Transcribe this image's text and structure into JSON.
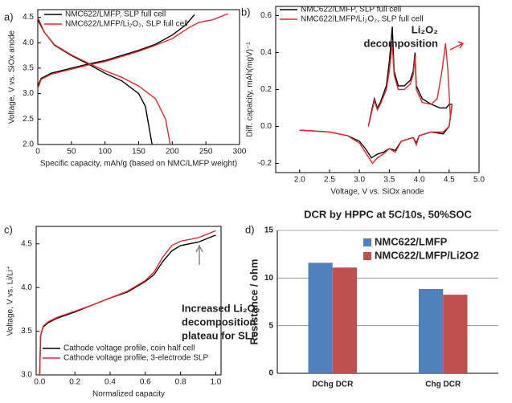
{
  "chart_data": [
    {
      "type": "line",
      "panel": "a)",
      "xlabel": "Specific capacity, mAh/g (based on NMC/LMFP weight)",
      "ylabel": "Voltage, V vs. SiOx anode",
      "xlim": [
        0,
        300
      ],
      "xticks": [
        0,
        50,
        100,
        150,
        200,
        250,
        300
      ],
      "ylim": [
        2.0,
        4.65
      ],
      "yticks": [
        {
          "value": 2,
          "label": "2.0"
        },
        2.5,
        {
          "value": 3,
          "label": "3.0"
        },
        3.5,
        {
          "value": 4,
          "label": "4.0"
        },
        4.5
      ],
      "series": [
        {
          "name": "NMC622/LMFP, SLP full cell",
          "color": "#000000",
          "x": [
            0,
            5,
            20,
            50,
            75,
            100,
            125,
            150,
            175,
            200,
            220,
            233,
            null,
            0,
            10,
            25,
            50,
            75,
            100,
            125,
            150,
            160,
            170
          ],
          "values": [
            3.15,
            3.3,
            3.4,
            3.5,
            3.58,
            3.65,
            3.75,
            3.85,
            3.97,
            4.15,
            4.35,
            4.55,
            null,
            4.45,
            4.2,
            3.95,
            3.75,
            3.58,
            3.4,
            3.25,
            3.0,
            2.75,
            2.0
          ]
        },
        {
          "name": "NMC622/LMFP/Li₂O₂, SLP full cell",
          "color": "#e8262b",
          "x": [
            0,
            5,
            20,
            50,
            75,
            100,
            125,
            150,
            175,
            200,
            225,
            240,
            260,
            283,
            null,
            0,
            10,
            25,
            50,
            75,
            100,
            125,
            150,
            175,
            190,
            197
          ],
          "values": [
            3.1,
            3.28,
            3.38,
            3.48,
            3.56,
            3.63,
            3.73,
            3.83,
            3.95,
            4.08,
            4.3,
            4.4,
            4.45,
            4.57,
            null,
            4.5,
            4.2,
            3.96,
            3.76,
            3.6,
            3.45,
            3.32,
            3.15,
            2.9,
            2.5,
            2.0
          ]
        }
      ]
    },
    {
      "type": "line",
      "panel": "b)",
      "xlabel": "Voltage, V vs. SiOx anode",
      "ylabel": "Diff. capacity, mAh(mgV)⁻¹",
      "annotation": [
        "Li₂O₂",
        "decomposition"
      ],
      "xlim": [
        1.6,
        5.0
      ],
      "xticks": [
        {
          "value": 2,
          "label": "2.0"
        },
        2.5,
        {
          "value": 3,
          "label": "3.0"
        },
        3.5,
        {
          "value": 4,
          "label": "4.0"
        },
        4.5,
        {
          "value": 5,
          "label": "5.0"
        }
      ],
      "ylim": [
        -0.25,
        0.65
      ],
      "yticks": [
        -0.2,
        {
          "value": 0,
          "label": "0.0"
        },
        0.2,
        0.4,
        0.6
      ],
      "series": [
        {
          "name": "NMC622/LMFP, SLP full cell",
          "color": "#000000",
          "x": [
            3.15,
            3.2,
            3.25,
            3.3,
            3.35,
            3.45,
            3.5,
            3.55,
            3.58,
            3.65,
            3.75,
            3.85,
            3.9,
            3.93,
            3.95,
            4.05,
            4.2,
            4.35,
            4.45,
            4.5,
            4.55,
            null,
            4.55,
            4.5,
            4.4,
            4.2,
            4.0,
            3.95,
            3.9,
            3.7,
            3.6,
            3.5,
            3.4,
            3.3,
            3.2,
            3.1,
            3.0,
            2.8,
            2.5,
            2.0
          ],
          "values": [
            0.0,
            0.08,
            0.15,
            0.1,
            0.13,
            0.22,
            0.35,
            0.54,
            0.3,
            0.22,
            0.22,
            0.25,
            0.3,
            0.4,
            0.22,
            0.15,
            0.12,
            0.1,
            0.1,
            0.12,
            0.12,
            null,
            0.12,
            0.0,
            -0.04,
            -0.03,
            -0.05,
            -0.09,
            -0.06,
            -0.08,
            -0.13,
            -0.12,
            -0.14,
            -0.15,
            -0.17,
            -0.12,
            -0.08,
            -0.05,
            -0.03,
            -0.02
          ]
        },
        {
          "name": "NMC622/LMFP/Li₂O₂, SLP full cell",
          "color": "#e8262b",
          "x": [
            3.15,
            3.2,
            3.25,
            3.3,
            3.35,
            3.45,
            3.5,
            3.55,
            3.58,
            3.65,
            3.75,
            3.85,
            3.9,
            3.93,
            3.95,
            4.05,
            4.2,
            4.3,
            4.38,
            4.44,
            4.48,
            4.52,
            4.55,
            null,
            4.55,
            4.5,
            4.4,
            4.2,
            4.0,
            3.95,
            3.9,
            3.7,
            3.6,
            3.5,
            3.4,
            3.3,
            3.22,
            3.1,
            3.0,
            2.8,
            2.5,
            2.0
          ],
          "values": [
            0.0,
            0.07,
            0.14,
            0.09,
            0.12,
            0.2,
            0.3,
            0.45,
            0.28,
            0.2,
            0.2,
            0.23,
            0.28,
            0.38,
            0.2,
            0.13,
            0.12,
            0.15,
            0.3,
            0.45,
            0.3,
            0.05,
            0.12,
            null,
            0.12,
            0.0,
            -0.03,
            -0.03,
            -0.05,
            -0.1,
            -0.06,
            -0.08,
            -0.14,
            -0.12,
            -0.15,
            -0.17,
            -0.2,
            -0.14,
            -0.09,
            -0.05,
            -0.03,
            -0.02
          ]
        }
      ]
    },
    {
      "type": "line",
      "panel": "c)",
      "xlabel": "Normalized capacity",
      "ylabel": "Voltage, V vs. Li/Li⁺",
      "annotation": [
        "Increased Li₂O₂",
        "decomposition",
        "plateau for SLP"
      ],
      "xlim": [
        -0.02,
        1.03
      ],
      "xticks": [
        {
          "value": 0,
          "label": "0.0"
        },
        0.2,
        0.4,
        0.6,
        0.8,
        {
          "value": 1,
          "label": "1.0"
        }
      ],
      "ylim": [
        3.0,
        4.7
      ],
      "yticks": [
        {
          "value": 3,
          "label": "3.0"
        },
        3.5,
        {
          "value": 4,
          "label": "4.0"
        },
        4.5
      ],
      "series": [
        {
          "name": "Cathode voltage profile, coin half cell",
          "color": "#000000",
          "x": [
            0,
            0.005,
            0.02,
            0.05,
            0.1,
            0.2,
            0.3,
            0.4,
            0.5,
            0.6,
            0.65,
            0.7,
            0.75,
            0.8,
            0.9,
            1.0
          ],
          "values": [
            3.0,
            3.45,
            3.55,
            3.6,
            3.65,
            3.72,
            3.8,
            3.88,
            3.95,
            4.07,
            4.15,
            4.3,
            4.42,
            4.48,
            4.52,
            4.6
          ]
        },
        {
          "name": "Cathode voltage profile, 3-electrode SLP",
          "color": "#e8262b",
          "x": [
            0,
            0.005,
            0.02,
            0.05,
            0.1,
            0.2,
            0.3,
            0.4,
            0.5,
            0.6,
            0.65,
            0.7,
            0.75,
            0.8,
            0.9,
            1.0
          ],
          "values": [
            3.0,
            3.45,
            3.56,
            3.61,
            3.66,
            3.73,
            3.8,
            3.88,
            3.96,
            4.08,
            4.18,
            4.35,
            4.48,
            4.53,
            4.57,
            4.65
          ]
        }
      ]
    },
    {
      "type": "bar",
      "panel": "d)",
      "title": "DCR by HPPC at 5C/10s, 50%SOC",
      "ylabel": "Resistance / ohm",
      "categories": [
        "DChg DCR",
        "Chg DCR"
      ],
      "ylim": [
        0,
        15
      ],
      "yticks": [
        0,
        5,
        10,
        15
      ],
      "grid": true,
      "series": [
        {
          "name": "NMC622/LMFP",
          "color": "#4f81bd",
          "values": [
            11.6,
            8.85
          ]
        },
        {
          "name": "NMC622/LMFP/Li2O2",
          "color": "#c0504d",
          "values": [
            11.1,
            8.25
          ]
        }
      ]
    }
  ]
}
